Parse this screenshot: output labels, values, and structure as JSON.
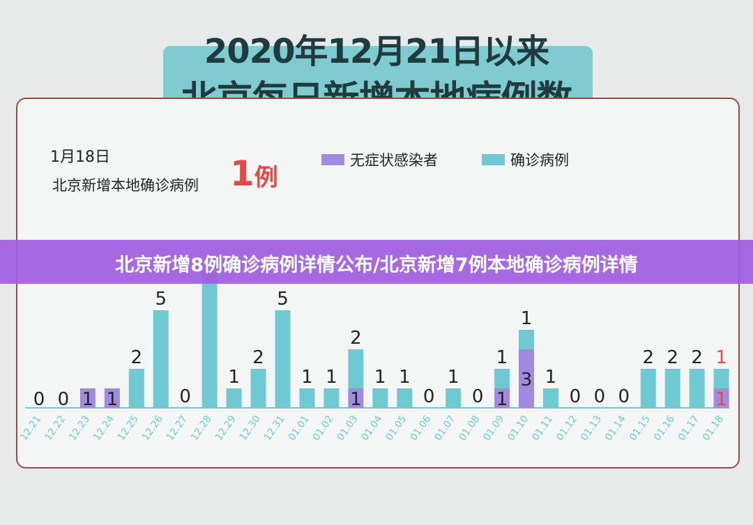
{
  "header": {
    "title_line1": "2020年12月21日以来",
    "title_line2": "北京每日新增本地病例数"
  },
  "summary": {
    "date": "1月18日",
    "label": "北京新增本地确诊病例",
    "count": "1",
    "unit": "例"
  },
  "banner": {
    "text": "北京新增8例确诊病例详情公布/北京新增7例本地确诊病例详情"
  },
  "colors": {
    "confirmed": "#6fc9d3",
    "asymptomatic": "#a18be0",
    "highlight": "#e04b47",
    "axis": "#6fc9d3"
  },
  "chart_data": {
    "type": "bar",
    "stacked": true,
    "categories": [
      "12.21",
      "12.22",
      "12.23",
      "12.24",
      "12.25",
      "12.26",
      "12.27",
      "12.28",
      "12.29",
      "12.30",
      "12.31",
      "01.01",
      "01.02",
      "01.03",
      "01.04",
      "01.05",
      "01.06",
      "01.07",
      "01.08",
      "01.09",
      "01.10",
      "01.11",
      "01.12",
      "01.13",
      "01.14",
      "01.15",
      "01.16",
      "01.17",
      "01.18"
    ],
    "series": [
      {
        "name": "无症状感染者",
        "values": [
          0,
          0,
          1,
          1,
          0,
          0,
          0,
          0,
          0,
          0,
          0,
          0,
          0,
          1,
          0,
          0,
          0,
          0,
          0,
          1,
          3,
          0,
          0,
          0,
          0,
          0,
          0,
          0,
          1
        ]
      },
      {
        "name": "确诊病例",
        "values": [
          0,
          0,
          0,
          0,
          2,
          5,
          0,
          7,
          1,
          2,
          5,
          1,
          1,
          2,
          1,
          1,
          0,
          1,
          0,
          1,
          1,
          1,
          0,
          0,
          0,
          2,
          2,
          2,
          1
        ]
      }
    ],
    "labels_bottom": [
      "0",
      "0",
      "1",
      "1",
      "",
      "",
      "",
      "",
      "",
      "",
      "",
      "",
      "",
      "1",
      "",
      "",
      "",
      "",
      "",
      "1",
      "3",
      "",
      "",
      "",
      "",
      "",
      "",
      "",
      "1"
    ],
    "labels_top": [
      "",
      "",
      "",
      "",
      "2",
      "5",
      "0",
      "",
      "1",
      "2",
      "5",
      "1",
      "1",
      "2",
      "1",
      "1",
      "0",
      "1",
      "0",
      "1",
      "1",
      "1",
      "0",
      "0",
      "0",
      "2",
      "2",
      "2",
      "1"
    ],
    "legend_position": "top",
    "grid": false,
    "ylim": [
      0,
      10
    ]
  }
}
